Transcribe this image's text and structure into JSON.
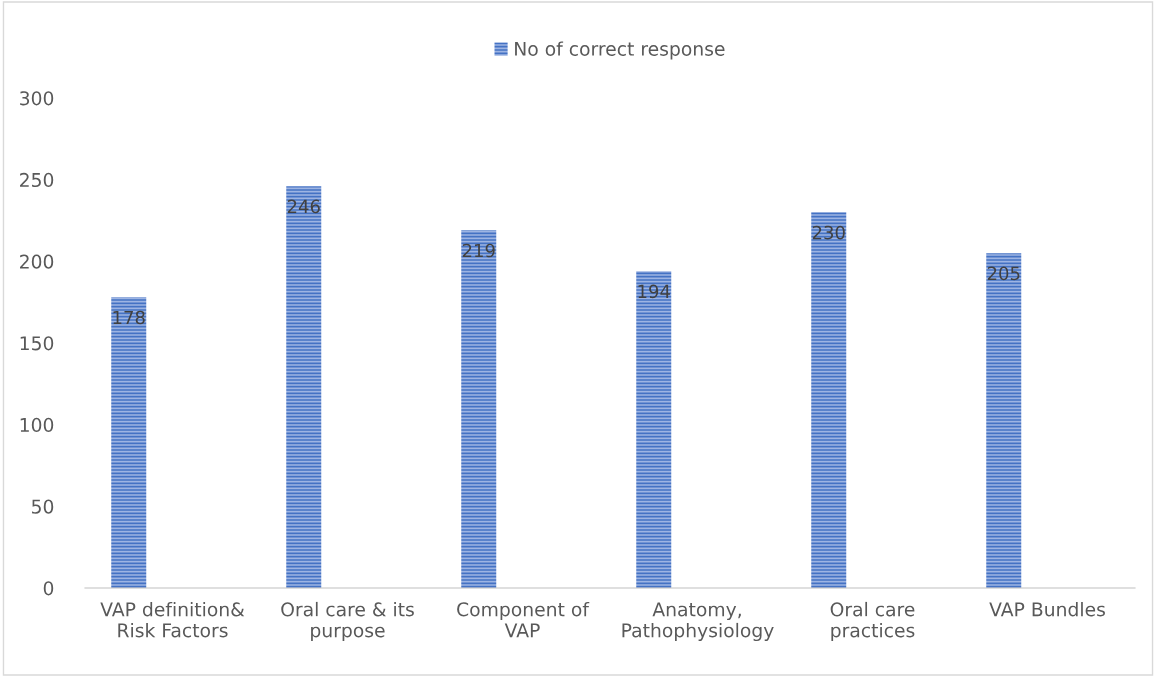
{
  "chart_data": {
    "type": "bar",
    "categories": [
      "VAP definition&\nRisk Factors",
      "Oral care & its\npurpose",
      "Component of\nVAP",
      "Anatomy,\nPathophysiology",
      "Oral care\npractices",
      "VAP Bundles"
    ],
    "series": [
      {
        "name": "No of correct response",
        "color": "#4472c4",
        "values": [
          178,
          246,
          219,
          194,
          230,
          205
        ]
      }
    ],
    "ylim": [
      0,
      300
    ],
    "yticks": [
      0,
      50,
      100,
      150,
      200,
      250,
      300
    ],
    "grid": false,
    "legend": "top",
    "data_labels": true
  }
}
